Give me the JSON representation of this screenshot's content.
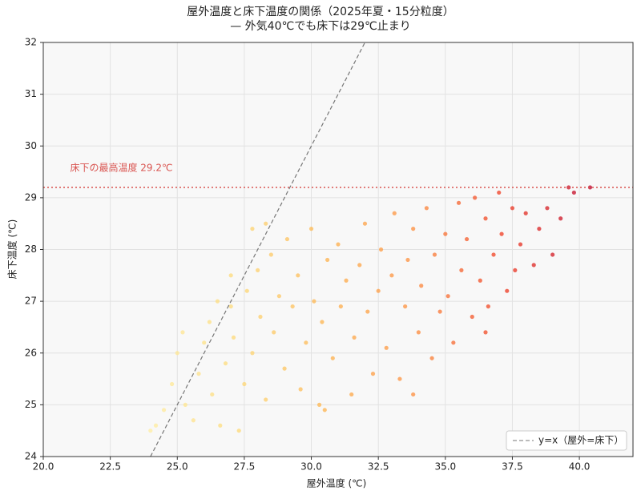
{
  "chart_data": {
    "type": "scatter",
    "title": "屋外温度と床下温度の関係（2025年夏・15分粒度）",
    "subtitle": "— 外気40℃でも床下は29℃止まり",
    "x_label": "屋外温度 (℃)",
    "y_label": "床下温度 (℃)",
    "xlim": [
      20,
      42
    ],
    "ylim": [
      24,
      32
    ],
    "xticks": [
      {
        "value": 20,
        "label": "20.0"
      },
      {
        "value": 22.5,
        "label": "22.5"
      },
      {
        "value": 25,
        "label": "25.0"
      },
      {
        "value": 27.5,
        "label": "27.5"
      },
      {
        "value": 30,
        "label": "30.0"
      },
      {
        "value": 32.5,
        "label": "32.5"
      },
      {
        "value": 35,
        "label": "35.0"
      },
      {
        "value": 37.5,
        "label": "37.5"
      },
      {
        "value": 40,
        "label": "40.0"
      }
    ],
    "yticks": [
      24,
      25,
      26,
      27,
      28,
      29,
      30,
      31,
      32
    ],
    "grid": true,
    "colormap": [
      "#ffeda0",
      "#fed976",
      "#feb24c",
      "#fd8d3c",
      "#f03b20",
      "#bd0026"
    ],
    "x": [
      24.2,
      24.5,
      24.8,
      25.0,
      25.2,
      25.3,
      25.6,
      25.8,
      26.0,
      26.2,
      26.3,
      26.6,
      26.8,
      27.0,
      27.1,
      27.3,
      27.5,
      27.6,
      27.8,
      28.0,
      28.1,
      28.3,
      28.5,
      28.6,
      28.8,
      29.0,
      29.1,
      29.3,
      29.5,
      29.6,
      29.8,
      30.0,
      30.1,
      30.3,
      30.4,
      30.6,
      30.8,
      31.0,
      31.1,
      31.3,
      31.5,
      31.6,
      31.8,
      32.0,
      32.1,
      32.3,
      32.5,
      32.6,
      32.8,
      33.0,
      33.1,
      33.3,
      33.5,
      33.6,
      33.8,
      34.0,
      34.1,
      34.3,
      34.5,
      34.6,
      34.8,
      35.0,
      35.1,
      35.3,
      35.5,
      35.6,
      35.8,
      36.0,
      36.1,
      36.3,
      36.5,
      36.6,
      36.8,
      37.0,
      37.1,
      37.3,
      37.5,
      37.6,
      37.8,
      38.0,
      38.3,
      38.5,
      38.8,
      39.0,
      39.3,
      39.6,
      39.8,
      40.4,
      24.0,
      26.5,
      27.0,
      27.8,
      28.3,
      30.5,
      33.8,
      36.5
    ],
    "y": [
      24.6,
      24.9,
      25.4,
      26.0,
      26.4,
      25.0,
      24.7,
      25.6,
      26.2,
      26.6,
      25.2,
      24.6,
      25.8,
      26.9,
      26.3,
      24.5,
      25.4,
      27.2,
      26.0,
      27.6,
      26.7,
      25.1,
      27.9,
      26.4,
      27.1,
      25.7,
      28.2,
      26.9,
      27.5,
      25.3,
      26.2,
      28.4,
      27.0,
      25.0,
      26.6,
      27.8,
      25.9,
      28.1,
      26.9,
      27.4,
      25.2,
      26.3,
      27.7,
      28.5,
      26.8,
      25.6,
      27.2,
      28.0,
      26.1,
      27.5,
      28.7,
      25.5,
      26.9,
      27.8,
      28.4,
      26.4,
      27.3,
      28.8,
      25.9,
      27.9,
      26.8,
      28.3,
      27.1,
      26.2,
      28.9,
      27.6,
      28.2,
      26.7,
      29.0,
      27.4,
      28.6,
      26.9,
      27.9,
      29.1,
      28.3,
      27.2,
      28.8,
      27.6,
      28.1,
      28.7,
      27.7,
      28.4,
      28.8,
      27.9,
      28.6,
      29.2,
      29.1,
      29.2,
      24.5,
      27.0,
      27.5,
      28.4,
      28.5,
      24.9,
      25.2,
      26.4
    ],
    "max_line": {
      "value": 29.2,
      "label": "床下の最高温度 29.2℃",
      "color": "#d9534f"
    },
    "diagonal": {
      "label": "y=x（屋外=床下）",
      "color": "#777777"
    },
    "legend_position": "lower right"
  }
}
